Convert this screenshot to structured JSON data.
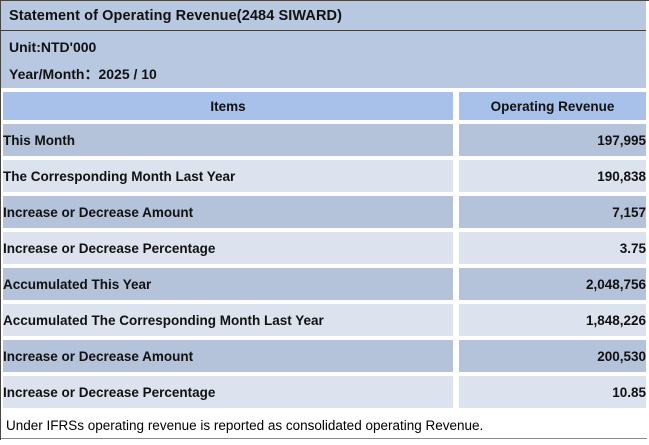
{
  "page": {
    "title": "Statement of Operating Revenue(2484 SIWARD)",
    "unit_label": "Unit:NTD'000",
    "period_label": "Year/Month：2025 / 10",
    "footnote": "Under IFRSs operating revenue is reported as consolidated operating Revenue."
  },
  "table": {
    "columns": [
      "Items",
      "Operating Revenue"
    ],
    "rows": [
      {
        "label": "This Month",
        "value": "197,995"
      },
      {
        "label": "The Corresponding Month Last Year",
        "value": "190,838"
      },
      {
        "label": "Increase or Decrease Amount",
        "value": "7,157"
      },
      {
        "label": "Increase or Decrease Percentage",
        "value": "3.75"
      },
      {
        "label": "Accumulated This Year",
        "value": "2,048,756"
      },
      {
        "label": "Accumulated The Corresponding Month Last Year",
        "value": "1,848,226"
      },
      {
        "label": "Increase or Decrease Amount",
        "value": "200,530"
      },
      {
        "label": "Increase or Decrease Percentage",
        "value": "10.85"
      }
    ]
  },
  "colors": {
    "band_background": "#b9c8e1",
    "header_row_background": "#a7c1ea",
    "row_dark_background": "#b4c3da",
    "row_light_background": "#dde3ee",
    "grid_gap": "#ffffff",
    "border_dark": "#474747",
    "text": "#111111"
  }
}
